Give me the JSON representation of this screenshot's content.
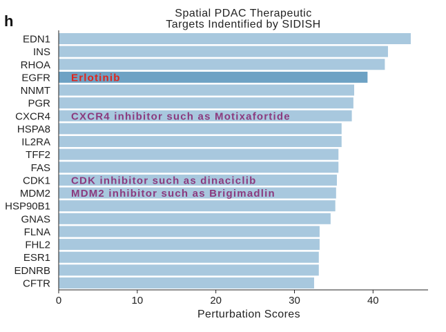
{
  "panel_label": "h",
  "chart_data": {
    "type": "bar",
    "orientation": "horizontal",
    "title_lines": [
      "Spatial PDAC Therapeutic",
      "Targets Indentified by SIDISH"
    ],
    "xlabel": "Perturbation Scores",
    "ylabel": "",
    "xlim": [
      0,
      47
    ],
    "xticks": [
      0,
      10,
      20,
      30,
      40
    ],
    "grid": false,
    "categories": [
      "EDN1",
      "INS",
      "RHOA",
      "EGFR",
      "NNMT",
      "PGR",
      "CXCR4",
      "HSPA8",
      "IL2RA",
      "TFF2",
      "FAS",
      "CDK1",
      "MDM2",
      "HSP90B1",
      "GNAS",
      "FLNA",
      "FHL2",
      "ESR1",
      "EDNRB",
      "CFTR"
    ],
    "values": [
      44.8,
      41.9,
      41.5,
      39.3,
      37.6,
      37.5,
      37.3,
      36.0,
      36.0,
      35.6,
      35.6,
      35.4,
      35.3,
      35.2,
      34.6,
      33.2,
      33.2,
      33.1,
      33.1,
      32.5
    ],
    "highlighted": [
      "EGFR"
    ],
    "colors": {
      "bar": "#a8c8de",
      "highlight_bar": "#6ea2c4",
      "axis": "#222222"
    },
    "annotations": [
      {
        "category": "EGFR",
        "text": "Erlotinib",
        "color": "#e0241b"
      },
      {
        "category": "CXCR4",
        "text": "CXCR4 inhibitor such as Motixafortide",
        "color": "#8b3a7e"
      },
      {
        "category": "CDK1",
        "text": "CDK inhibitor such as dinaciclib",
        "color": "#8b3a7e"
      },
      {
        "category": "MDM2",
        "text": "MDM2 inhibitor such as Brigimadlin",
        "color": "#8b3a7e"
      }
    ]
  }
}
